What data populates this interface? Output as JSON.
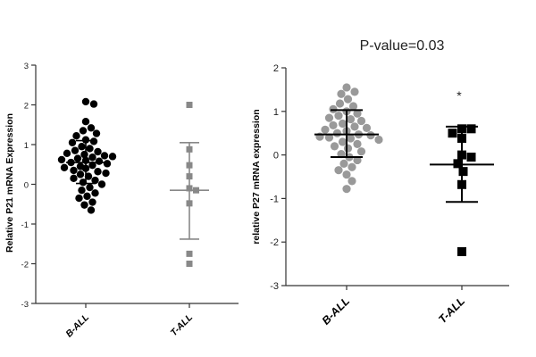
{
  "chart_data": [
    {
      "type": "scatter",
      "title": "",
      "ylabel": "Relative P21 mRNA Expression",
      "xlabel": "",
      "categories": [
        "B-ALL",
        "T-ALL"
      ],
      "ylim": [
        -3,
        3
      ],
      "yticks": [
        -3,
        -2,
        -1,
        0,
        1,
        2,
        3
      ],
      "grid": false,
      "annotations": [],
      "series": [
        {
          "category": "B-ALL",
          "marker": "circle",
          "color": "#000000",
          "values": [
            2.08,
            2.02,
            1.58,
            1.42,
            1.35,
            1.28,
            1.22,
            1.12,
            1.08,
            1.05,
            0.95,
            0.9,
            0.85,
            0.82,
            0.78,
            0.75,
            0.72,
            0.7,
            0.68,
            0.65,
            0.62,
            0.6,
            0.58,
            0.55,
            0.52,
            0.48,
            0.45,
            0.42,
            0.4,
            0.35,
            0.32,
            0.28,
            0.25,
            0.2,
            0.15,
            0.1,
            0.05,
            0.0,
            -0.08,
            -0.15,
            -0.22,
            -0.3,
            -0.35,
            -0.45,
            -0.52,
            -0.65
          ],
          "mean": 0.55,
          "error_upper": 1.1,
          "error_lower": 0.02
        },
        {
          "category": "T-ALL",
          "marker": "square",
          "color": "#888888",
          "values": [
            2.0,
            0.88,
            0.48,
            0.2,
            -0.1,
            -0.15,
            -0.48,
            -1.75,
            -2.0
          ],
          "mean": -0.15,
          "error_upper": 1.05,
          "error_lower": -1.38
        }
      ]
    },
    {
      "type": "scatter",
      "title": "P-value=0.03",
      "ylabel": "relative P27 mRNA expression",
      "xlabel": "",
      "categories": [
        "B-ALL",
        "T-ALL"
      ],
      "ylim": [
        -3,
        2
      ],
      "yticks": [
        -3,
        -2,
        -1,
        0,
        1,
        2
      ],
      "grid": false,
      "annotations": [
        "*"
      ],
      "series": [
        {
          "category": "B-ALL",
          "marker": "circle",
          "color": "#999999",
          "values": [
            1.55,
            1.45,
            1.4,
            1.28,
            1.18,
            1.12,
            1.05,
            1.0,
            0.95,
            0.9,
            0.85,
            0.82,
            0.78,
            0.72,
            0.68,
            0.65,
            0.62,
            0.58,
            0.55,
            0.5,
            0.47,
            0.45,
            0.42,
            0.4,
            0.38,
            0.35,
            0.3,
            0.25,
            0.2,
            0.15,
            0.08,
            0.02,
            -0.05,
            -0.12,
            -0.2,
            -0.28,
            -0.35,
            -0.45,
            -0.6,
            -0.78
          ],
          "mean": 0.47,
          "error_upper": 1.03,
          "error_lower": -0.05
        },
        {
          "category": "T-ALL",
          "marker": "square",
          "color": "#000000",
          "values": [
            0.6,
            0.6,
            0.5,
            0.38,
            0.0,
            -0.05,
            -0.2,
            -0.38,
            -0.68,
            -2.22
          ],
          "mean": -0.22,
          "error_upper": 0.65,
          "error_lower": -1.08
        }
      ]
    }
  ]
}
